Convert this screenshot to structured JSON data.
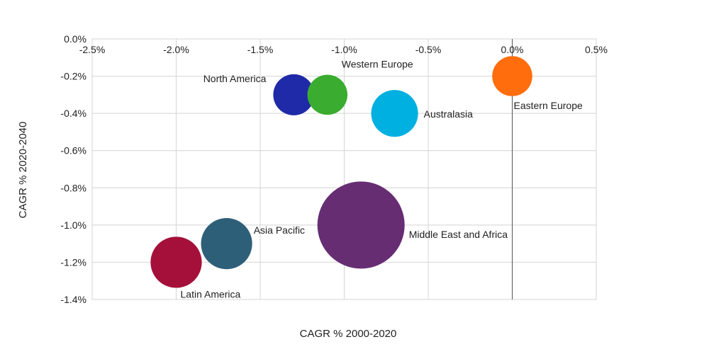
{
  "chart_data": {
    "type": "bubble",
    "title": "",
    "xlabel": "CAGR % 2000-2020",
    "ylabel": "CAGR % 2020-2040",
    "xlim": [
      -2.5,
      0.5
    ],
    "ylim": [
      -1.4,
      0.0
    ],
    "xticks": [
      "-2.5%",
      "-2.0%",
      "-1.5%",
      "-1.0%",
      "-0.5%",
      "0.0%",
      "0.5%"
    ],
    "yticks": [
      "0.0%",
      "-0.2%",
      "-0.4%",
      "-0.6%",
      "-0.8%",
      "-1.0%",
      "-1.2%",
      "-1.4%"
    ],
    "grid": true,
    "legend": "none",
    "points": [
      {
        "label": "North America",
        "x": -1.3,
        "y": -0.3,
        "size": 1.0,
        "color": "#1f2aa8"
      },
      {
        "label": "Western Europe",
        "x": -1.1,
        "y": -0.3,
        "size": 0.95,
        "color": "#3aac2f"
      },
      {
        "label": "Australasia",
        "x": -0.7,
        "y": -0.4,
        "size": 1.3,
        "color": "#00b0e0"
      },
      {
        "label": "Eastern Europe",
        "x": 0.0,
        "y": -0.2,
        "size": 0.95,
        "color": "#ff6d0d"
      },
      {
        "label": "Middle East and Africa",
        "x": -0.9,
        "y": -1.0,
        "size": 4.5,
        "color": "#662d73"
      },
      {
        "label": "Asia Pacific",
        "x": -1.7,
        "y": -1.1,
        "size": 1.55,
        "color": "#2e5f79"
      },
      {
        "label": "Latin America",
        "x": -2.0,
        "y": -1.2,
        "size": 1.55,
        "color": "#a5103a"
      }
    ]
  }
}
